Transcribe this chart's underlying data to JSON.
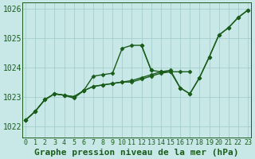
{
  "title": "Graphe pression niveau de la mer (hPa)",
  "ylim": [
    1021.6,
    1026.2
  ],
  "yticks": [
    1022,
    1023,
    1024,
    1025,
    1026
  ],
  "xlim": [
    -0.3,
    23.3
  ],
  "xticks": [
    0,
    1,
    2,
    3,
    4,
    5,
    6,
    7,
    8,
    9,
    10,
    11,
    12,
    13,
    14,
    15,
    16,
    17,
    18,
    19,
    20,
    21,
    22,
    23
  ],
  "background_color": "#c8e8e8",
  "grid_color": "#a0c8c8",
  "line_color": "#1a5c1a",
  "line_width": 1.0,
  "marker": "D",
  "marker_size": 2.5,
  "title_color": "#1a5c1a",
  "title_fontsize": 8,
  "tick_fontsize": 6,
  "tick_color": "#1a5c1a",
  "series": [
    [
      1022.2,
      1022.5,
      1022.9,
      1023.1,
      1023.05,
      1022.95,
      1023.2,
      1023.7,
      1023.75,
      1023.8,
      1024.65,
      1024.75,
      1024.75,
      1023.9,
      null,
      null,
      null,
      null,
      null,
      null,
      null,
      null,
      null,
      null
    ],
    [
      1022.2,
      1022.5,
      1022.9,
      1023.1,
      1023.05,
      1023.0,
      1023.2,
      1023.35,
      1023.4,
      1023.45,
      1023.5,
      1023.5,
      1023.6,
      1023.7,
      1023.8,
      1023.85,
      1023.85,
      1023.85,
      null,
      null,
      null,
      null,
      null,
      null
    ],
    [
      1022.2,
      1022.5,
      1022.9,
      1023.1,
      1023.05,
      1023.0,
      1023.2,
      1023.35,
      1023.4,
      1023.45,
      1023.5,
      1023.55,
      1023.65,
      1023.75,
      1023.85,
      1023.9,
      1023.3,
      1023.1,
      1023.65,
      1024.35,
      1025.1,
      1025.35,
      1025.7,
      1025.95
    ],
    [
      null,
      null,
      null,
      null,
      null,
      null,
      null,
      null,
      null,
      null,
      null,
      null,
      1024.75,
      1023.9,
      1023.85,
      1023.85,
      1023.3,
      1023.1,
      1023.65,
      1024.35,
      1025.1,
      1025.35,
      1025.7,
      1025.95
    ]
  ]
}
